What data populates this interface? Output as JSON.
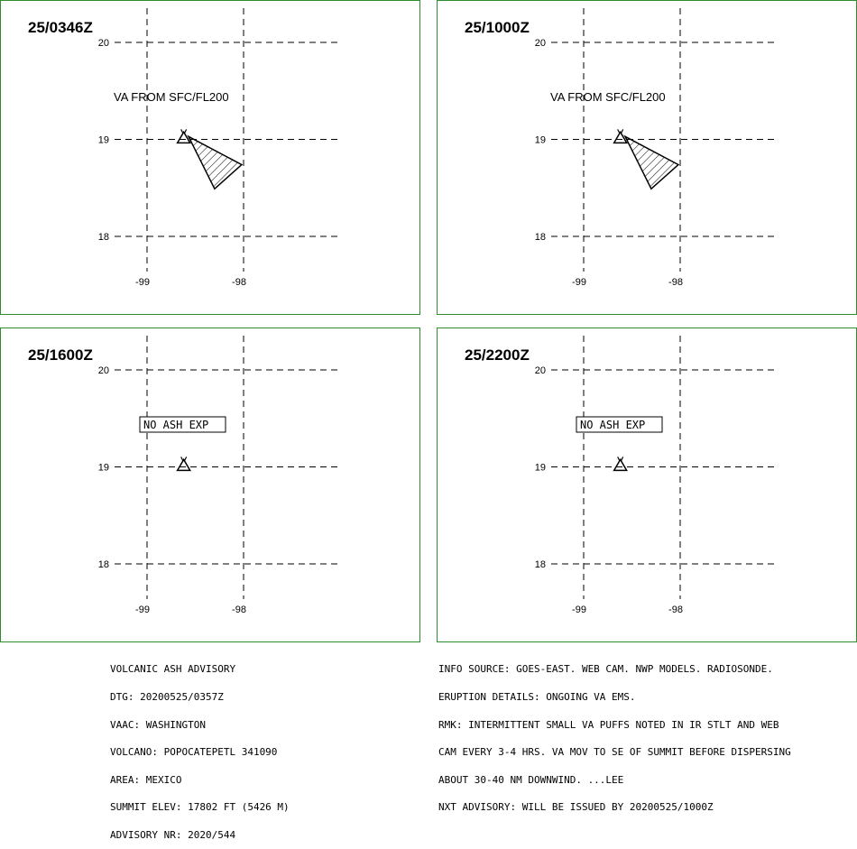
{
  "panels": [
    {
      "id": "p1",
      "title": "25/0346Z",
      "lat_labels": [
        "20",
        "19",
        "18"
      ],
      "lon_labels": [
        "-99",
        "-98"
      ],
      "annotation": "VA FROM SFC/FL200",
      "annotation_type": "text",
      "ash_polygon": [
        [
          -98.57,
          19.03
        ],
        [
          -98.02,
          18.74
        ],
        [
          -98.3,
          18.49
        ]
      ]
    },
    {
      "id": "p2",
      "title": "25/1000Z",
      "lat_labels": [
        "20",
        "19",
        "18"
      ],
      "lon_labels": [
        "-99",
        "-98"
      ],
      "annotation": "VA FROM SFC/FL200",
      "annotation_type": "text",
      "ash_polygon": [
        [
          -98.57,
          19.03
        ],
        [
          -98.02,
          18.74
        ],
        [
          -98.3,
          18.49
        ]
      ]
    },
    {
      "id": "p3",
      "title": "25/1600Z",
      "lat_labels": [
        "20",
        "19",
        "18"
      ],
      "lon_labels": [
        "-99",
        "-98"
      ],
      "annotation": "NO ASH EXP",
      "annotation_type": "box",
      "ash_polygon": []
    },
    {
      "id": "p4",
      "title": "25/2200Z",
      "lat_labels": [
        "20",
        "19",
        "18"
      ],
      "lon_labels": [
        "-99",
        "-98"
      ],
      "annotation": "NO ASH EXP",
      "annotation_type": "box",
      "ash_polygon": []
    }
  ],
  "volcano": {
    "lon": -98.62,
    "lat": 19.02,
    "symbol": "volcano-triangle-icon"
  },
  "advisory_left": [
    "VOLCANIC ASH ADVISORY",
    "DTG: 20200525/0357Z",
    "VAAC: WASHINGTON",
    "VOLCANO: POPOCATEPETL 341090",
    "AREA: MEXICO",
    "SUMMIT ELEV: 17802 FT (5426 M)",
    "ADVISORY NR: 2020/544"
  ],
  "advisory_right": [
    "INFO SOURCE: GOES-EAST. WEB CAM. NWP MODELS. RADIOSONDE.",
    "ERUPTION DETAILS: ONGOING VA EMS.",
    "RMK: INTERMITTENT SMALL VA PUFFS NOTED IN IR STLT AND WEB",
    "CAM EVERY 3-4 HRS. VA MOV TO SE OF SUMMIT BEFORE DISPERSING",
    "ABOUT 30-40 NM DOWNWIND. ...LEE",
    "NXT ADVISORY: WILL BE ISSUED BY 20200525/1000Z"
  ],
  "colors": {
    "border": "#2e8b2e",
    "ink": "#000000"
  }
}
